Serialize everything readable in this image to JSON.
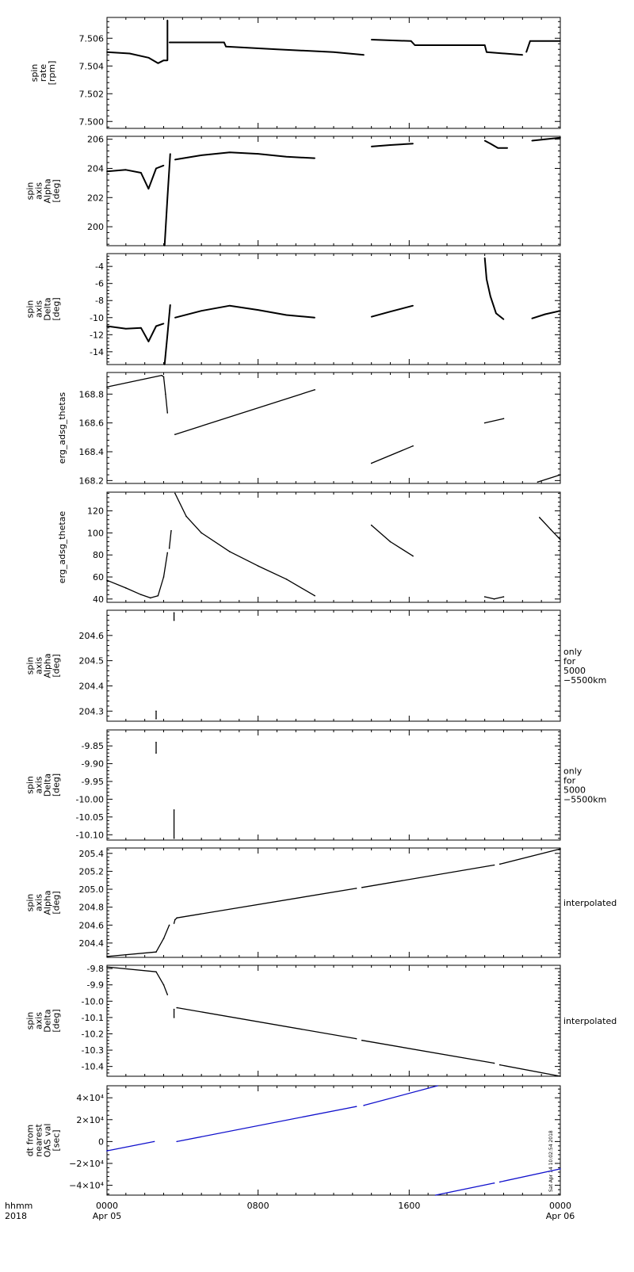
{
  "chart_data": [
    {
      "type": "scatter",
      "ylabel": [
        "spin",
        "rate",
        "[rpm]"
      ],
      "ylim": [
        7.4995,
        7.5075
      ],
      "yticks": [
        7.5,
        7.502,
        7.504,
        7.506
      ],
      "ytick_labels": [
        "7.500",
        "7.502",
        "7.504",
        "7.506"
      ],
      "right_note": [],
      "series": [
        {
          "x": [
            0.0,
            1.2,
            2.2,
            2.7,
            3.0,
            3.1,
            3.2
          ],
          "y": [
            7.505,
            7.5049,
            7.5046,
            7.5042,
            7.5044,
            7.5044,
            7.5044
          ]
        },
        {
          "x": [
            3.2,
            3.2
          ],
          "y": [
            7.5044,
            7.5073
          ]
        },
        {
          "x": [
            3.3,
            6.2,
            6.3,
            9.0,
            12.0,
            13.6
          ],
          "y": [
            7.5057,
            7.5057,
            7.5054,
            7.5052,
            7.505,
            7.5048
          ]
        },
        {
          "x": [
            14.0,
            16.1,
            16.3,
            19.0,
            20.0,
            20.1,
            22.0
          ],
          "y": [
            7.5059,
            7.5058,
            7.5055,
            7.5055,
            7.5055,
            7.505,
            7.5048
          ]
        },
        {
          "x": [
            22.2,
            22.4,
            24.0
          ],
          "y": [
            7.505,
            7.5058,
            7.5058
          ]
        }
      ]
    },
    {
      "type": "scatter",
      "ylabel": [
        "spin",
        "axis",
        "Alpha",
        "[deg]"
      ],
      "ylim": [
        198.7,
        206.2
      ],
      "yticks": [
        200,
        202,
        204,
        206
      ],
      "ytick_labels": [
        "200",
        "202",
        "204",
        "206"
      ],
      "right_note": [],
      "series": [
        {
          "x": [
            0.0,
            1.0,
            1.8,
            2.2,
            2.6,
            3.0
          ],
          "y": [
            203.8,
            203.9,
            203.7,
            202.6,
            204.0,
            204.2
          ]
        },
        {
          "x": [
            3.05,
            3.2,
            3.35
          ],
          "y": [
            198.7,
            202.0,
            205.0
          ]
        },
        {
          "x": [
            3.6,
            5.0,
            6.5,
            8.0,
            9.5,
            11.0
          ],
          "y": [
            204.6,
            204.9,
            205.1,
            205.0,
            204.8,
            204.7
          ]
        },
        {
          "x": [
            14.0,
            15.0,
            16.2
          ],
          "y": [
            205.5,
            205.6,
            205.7
          ]
        },
        {
          "x": [
            20.0,
            20.3,
            20.7,
            21.2
          ],
          "y": [
            205.9,
            205.7,
            205.4,
            205.4
          ]
        },
        {
          "x": [
            22.5,
            23.2,
            24.0
          ],
          "y": [
            205.9,
            206.0,
            206.1
          ]
        }
      ]
    },
    {
      "type": "scatter",
      "ylabel": [
        "spin",
        "axis",
        "Delta",
        "[deg]"
      ],
      "ylim": [
        -15.5,
        -2.5
      ],
      "yticks": [
        -14,
        -12,
        -10,
        -8,
        -6,
        -4
      ],
      "ytick_labels": [
        "-14",
        "-12",
        "-10",
        "-8",
        "-6",
        "-4"
      ],
      "right_note": [],
      "series": [
        {
          "x": [
            0.0,
            1.0,
            1.8,
            2.2,
            2.6,
            3.0
          ],
          "y": [
            -11.0,
            -11.3,
            -11.2,
            -12.8,
            -11.0,
            -10.7
          ]
        },
        {
          "x": [
            3.05,
            3.2,
            3.35
          ],
          "y": [
            -15.5,
            -12.0,
            -8.5
          ]
        },
        {
          "x": [
            3.6,
            5.0,
            6.5,
            8.0,
            9.5,
            11.0
          ],
          "y": [
            -10.0,
            -9.2,
            -8.6,
            -9.1,
            -9.7,
            -10.0
          ]
        },
        {
          "x": [
            14.0,
            15.0,
            16.2
          ],
          "y": [
            -9.9,
            -9.3,
            -8.6
          ]
        },
        {
          "x": [
            20.0,
            20.1,
            20.3,
            20.6,
            21.0
          ],
          "y": [
            -3.0,
            -5.5,
            -7.5,
            -9.5,
            -10.2
          ]
        },
        {
          "x": [
            22.5,
            23.2,
            24.0
          ],
          "y": [
            -10.1,
            -9.6,
            -9.2
          ]
        }
      ]
    },
    {
      "type": "scatter",
      "ylabel": [
        "erg_adsg_thetas"
      ],
      "ylim": [
        168.18,
        168.95
      ],
      "yticks": [
        168.2,
        168.4,
        168.6,
        168.8
      ],
      "ytick_labels": [
        "168.2",
        "168.4",
        "168.6",
        "168.8"
      ],
      "right_note": [],
      "series": [
        {
          "x": [
            0.0,
            2.9,
            3.0,
            3.1,
            3.2
          ],
          "y": [
            168.85,
            168.93,
            168.92,
            168.8,
            168.67
          ]
        },
        {
          "x": [
            3.6,
            11.0
          ],
          "y": [
            168.52,
            168.83
          ]
        },
        {
          "x": [
            14.0,
            16.2
          ],
          "y": [
            168.32,
            168.44
          ]
        },
        {
          "x": [
            20.0,
            21.0
          ],
          "y": [
            168.6,
            168.63
          ]
        },
        {
          "x": [
            22.8,
            24.0
          ],
          "y": [
            168.19,
            168.24
          ]
        }
      ]
    },
    {
      "type": "scatter",
      "ylabel": [
        "erg_adsg_thetae"
      ],
      "ylim": [
        37,
        137
      ],
      "yticks": [
        40,
        60,
        80,
        100,
        120
      ],
      "ytick_labels": [
        "40",
        "60",
        "80",
        "100",
        "120"
      ],
      "right_note": [],
      "series": [
        {
          "x": [
            0.0,
            1.0,
            1.8,
            2.3,
            2.7,
            3.0,
            3.2
          ],
          "y": [
            57,
            50,
            44,
            41,
            43,
            60,
            82
          ]
        },
        {
          "x": [
            3.3,
            3.4
          ],
          "y": [
            86,
            102
          ]
        },
        {
          "x": [
            3.6,
            4.2,
            5.0,
            6.5,
            8.0,
            9.5,
            11.0
          ],
          "y": [
            136,
            115,
            100,
            83,
            70,
            58,
            43
          ]
        },
        {
          "x": [
            14.0,
            15.0,
            16.2
          ],
          "y": [
            107,
            92,
            79
          ]
        },
        {
          "x": [
            20.0,
            20.5,
            21.0
          ],
          "y": [
            42,
            40,
            42
          ]
        },
        {
          "x": [
            22.9,
            23.5,
            24.0
          ],
          "y": [
            114,
            103,
            94
          ]
        }
      ]
    },
    {
      "type": "scatter",
      "ylabel": [
        "spin",
        "axis",
        "Alpha",
        "[deg]"
      ],
      "ylim": [
        204.26,
        204.7
      ],
      "yticks": [
        204.3,
        204.4,
        204.5,
        204.6
      ],
      "ytick_labels": [
        "204.3",
        "204.4",
        "204.5",
        "204.6"
      ],
      "right_note": [
        "only",
        "for",
        "5000",
        "−5500km"
      ],
      "series": [
        {
          "x": [
            2.6,
            2.6
          ],
          "y": [
            204.27,
            204.3
          ]
        },
        {
          "x": [
            3.55,
            3.55
          ],
          "y": [
            204.66,
            204.69
          ]
        }
      ]
    },
    {
      "type": "scatter",
      "ylabel": [
        "spin",
        "axis",
        "Delta",
        "[deg]"
      ],
      "ylim": [
        -10.115,
        -9.805
      ],
      "yticks": [
        -10.1,
        -10.05,
        -10.0,
        -9.95,
        -9.9,
        -9.85
      ],
      "ytick_labels": [
        "-10.10",
        "-10.05",
        "-10.00",
        "-9.95",
        "-9.90",
        "-9.85"
      ],
      "right_note": [
        "only",
        "for",
        "5000",
        "−5500km"
      ],
      "series": [
        {
          "x": [
            2.6,
            2.6
          ],
          "y": [
            -9.84,
            -9.87
          ]
        },
        {
          "x": [
            3.55,
            3.55
          ],
          "y": [
            -10.03,
            -10.11
          ]
        }
      ]
    },
    {
      "type": "line",
      "ylabel": [
        "spin",
        "axis",
        "Alpha",
        "[deg]"
      ],
      "ylim": [
        204.24,
        205.46
      ],
      "yticks": [
        204.4,
        204.6,
        204.8,
        205.0,
        205.2,
        205.4
      ],
      "ytick_labels": [
        "204.4",
        "204.6",
        "204.8",
        "205.0",
        "205.2",
        "205.4"
      ],
      "right_note": [
        "interpolated"
      ],
      "series": [
        {
          "x": [
            0.0,
            2.6,
            3.0,
            3.3
          ],
          "y": [
            204.25,
            204.3,
            204.45,
            204.6
          ]
        },
        {
          "x": [
            3.55,
            3.6,
            3.7
          ],
          "y": [
            204.62,
            204.66,
            204.68
          ]
        },
        {
          "x": [
            3.7,
            13.2
          ],
          "y": [
            204.68,
            205.01
          ]
        },
        {
          "x": [
            13.5,
            20.5
          ],
          "y": [
            205.02,
            205.27
          ]
        },
        {
          "x": [
            20.8,
            24.0
          ],
          "y": [
            205.28,
            205.45
          ]
        }
      ]
    },
    {
      "type": "line",
      "ylabel": [
        "spin",
        "axis",
        "Delta",
        "[deg]"
      ],
      "ylim": [
        -10.46,
        -9.78
      ],
      "yticks": [
        -10.4,
        -10.3,
        -10.2,
        -10.1,
        -10.0,
        -9.9,
        -9.8
      ],
      "ytick_labels": [
        "-10.4",
        "-10.3",
        "-10.2",
        "-10.1",
        "-10.0",
        "-9.9",
        "-9.8"
      ],
      "right_note": [
        "interpolated"
      ],
      "series": [
        {
          "x": [
            0.0,
            2.6,
            3.0,
            3.2
          ],
          "y": [
            -9.79,
            -9.82,
            -9.9,
            -9.96
          ]
        },
        {
          "x": [
            3.55,
            3.55
          ],
          "y": [
            -10.05,
            -10.1
          ]
        },
        {
          "x": [
            3.7,
            13.2
          ],
          "y": [
            -10.04,
            -10.23
          ]
        },
        {
          "x": [
            13.5,
            20.5
          ],
          "y": [
            -10.24,
            -10.38
          ]
        },
        {
          "x": [
            20.8,
            24.0
          ],
          "y": [
            -10.39,
            -10.46
          ]
        }
      ]
    },
    {
      "type": "line",
      "ylabel": [
        "dt from",
        "nearest",
        "OAS val",
        "[sec]"
      ],
      "ylim": [
        -49000,
        51000
      ],
      "yticks": [
        -40000,
        -20000,
        0,
        20000,
        40000
      ],
      "ytick_labels": [
        "−4×10⁴",
        "−2×10⁴",
        "0",
        "2×10⁴",
        "4×10⁴"
      ],
      "right_note": [],
      "series_color": "#1010cc",
      "series": [
        {
          "x": [
            0.0,
            2.5
          ],
          "y": [
            -8500,
            0
          ]
        },
        {
          "x": [
            3.7,
            13.2
          ],
          "y": [
            0,
            32000
          ]
        },
        {
          "x": [
            13.6,
            17.5
          ],
          "y": [
            33000,
            51000
          ]
        },
        {
          "x": [
            17.4,
            20.5
          ],
          "y": [
            -49000,
            -38000
          ]
        },
        {
          "x": [
            20.8,
            24.0
          ],
          "y": [
            -37000,
            -25000
          ]
        }
      ],
      "side_caption": "Sat Apr 14 10:02:54 2018"
    }
  ],
  "xaxis": {
    "xlim": [
      0,
      24
    ],
    "tick_hours": [
      0,
      8,
      16,
      24
    ],
    "labels_line1": [
      "0000",
      "0800",
      "1600",
      "0000"
    ],
    "labels_line2": [
      "Apr 05",
      "",
      "",
      "Apr 06"
    ],
    "corner_label": [
      "hhmm",
      "2018"
    ]
  }
}
